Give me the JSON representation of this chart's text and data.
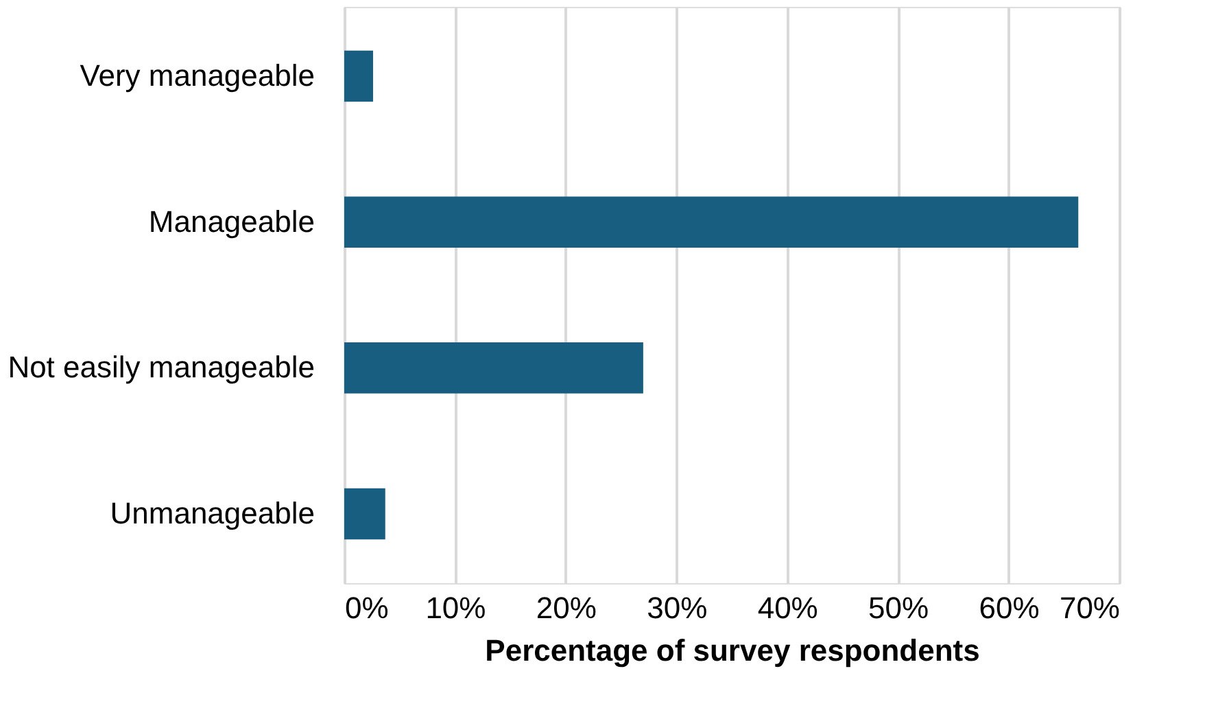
{
  "chart_data": {
    "type": "bar",
    "orientation": "horizontal",
    "categories": [
      "Very manageable",
      "Manageable",
      "Not easily manageable",
      "Unmanageable"
    ],
    "values": [
      2.6,
      66.3,
      27.0,
      3.7
    ],
    "color": "#175e80",
    "xlabel": "Percentage of survey respondents",
    "xlim": [
      0,
      70
    ],
    "xticks": [
      {
        "value": 0,
        "label": "0%"
      },
      {
        "value": 10,
        "label": "10%"
      },
      {
        "value": 20,
        "label": "20%"
      },
      {
        "value": 30,
        "label": "30%"
      },
      {
        "value": 40,
        "label": "40%"
      },
      {
        "value": 50,
        "label": "50%"
      },
      {
        "value": 60,
        "label": "60%"
      },
      {
        "value": 70,
        "label": "70%"
      }
    ],
    "grid": "x"
  }
}
